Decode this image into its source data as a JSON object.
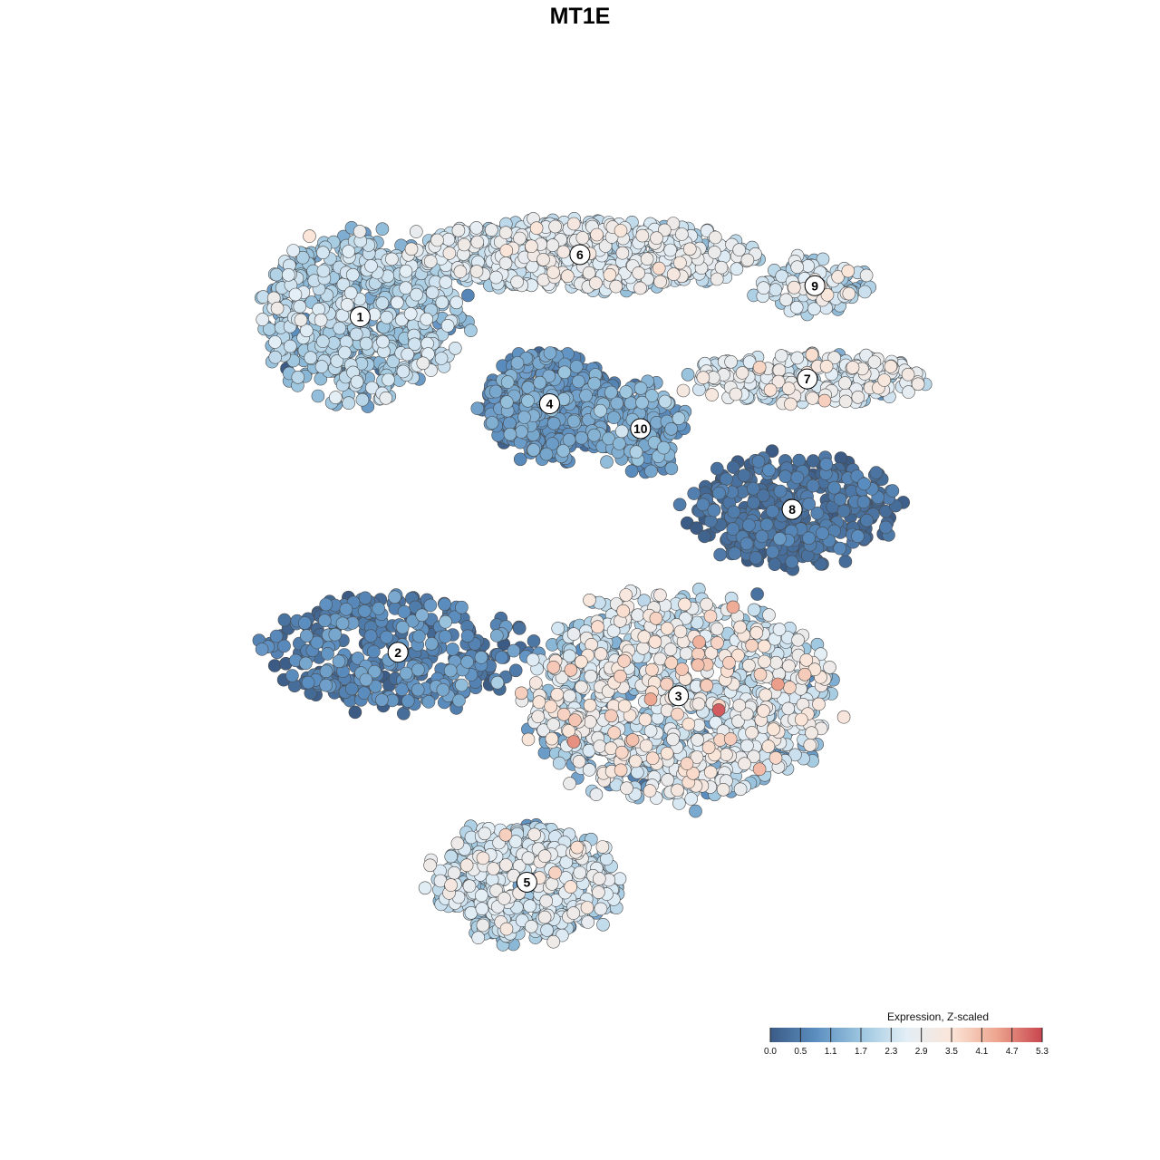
{
  "title": "MT1E",
  "chart_data": {
    "type": "scatter",
    "title": "MT1E",
    "xlabel": "",
    "ylabel": "",
    "color_scale": {
      "label": "Expression, Z-scaled",
      "min": 0.0,
      "max": 5.3,
      "ticks": [
        "0.0",
        "0.5",
        "1.1",
        "1.7",
        "2.3",
        "2.9",
        "3.5",
        "4.1",
        "4.7",
        "5.3"
      ],
      "colors": [
        "#3b5b85",
        "#5b8ec0",
        "#9cc6df",
        "#e3eef6",
        "#fbe5d8",
        "#eda58e",
        "#c8454f"
      ]
    },
    "clusters": [
      {
        "label": "1",
        "cx": 0.13,
        "cy": 0.66,
        "rx": 0.13,
        "ry": 0.13,
        "mean": 1.8,
        "spread": 0.5,
        "n": 650
      },
      {
        "label": "6",
        "cx": 0.42,
        "cy": 0.76,
        "rx": 0.22,
        "ry": 0.055,
        "mean": 2.4,
        "spread": 0.45,
        "n": 700
      },
      {
        "label": "9",
        "cx": 0.73,
        "cy": 0.71,
        "rx": 0.07,
        "ry": 0.045,
        "mean": 2.3,
        "spread": 0.45,
        "n": 110
      },
      {
        "label": "7",
        "cx": 0.72,
        "cy": 0.56,
        "rx": 0.16,
        "ry": 0.04,
        "mean": 2.5,
        "spread": 0.45,
        "n": 260
      },
      {
        "label": "4",
        "cx": 0.38,
        "cy": 0.52,
        "rx": 0.085,
        "ry": 0.085,
        "mean": 0.8,
        "spread": 0.35,
        "n": 520
      },
      {
        "label": "10",
        "cx": 0.5,
        "cy": 0.48,
        "rx": 0.06,
        "ry": 0.07,
        "mean": 1.1,
        "spread": 0.4,
        "n": 150
      },
      {
        "label": "8",
        "cx": 0.7,
        "cy": 0.35,
        "rx": 0.13,
        "ry": 0.09,
        "mean": 0.35,
        "spread": 0.25,
        "n": 380
      },
      {
        "label": "2",
        "cx": 0.18,
        "cy": 0.12,
        "rx": 0.17,
        "ry": 0.09,
        "mean": 0.6,
        "spread": 0.4,
        "n": 360
      },
      {
        "label": "3",
        "cx": 0.55,
        "cy": 0.05,
        "rx": 0.2,
        "ry": 0.16,
        "mean": 2.4,
        "spread": 0.7,
        "n": 1050
      },
      {
        "label": "5",
        "cx": 0.35,
        "cy": -0.25,
        "rx": 0.12,
        "ry": 0.09,
        "mean": 2.2,
        "spread": 0.5,
        "n": 560
      }
    ],
    "xlim": [
      -0.1,
      1.0
    ],
    "ylim": [
      -0.42,
      0.9
    ]
  }
}
